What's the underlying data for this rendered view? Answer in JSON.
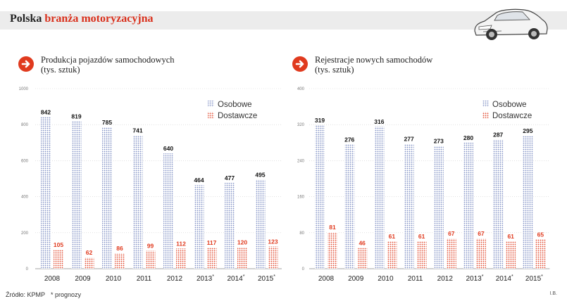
{
  "header": {
    "title_prefix": "Polska ",
    "title_accent": "branża motoryzacyjna"
  },
  "footer": {
    "source": "Źródło: KPMP",
    "note": "* prognozy",
    "credit": "I.B."
  },
  "colors": {
    "accent": "#e03a1e",
    "passenger": "#7f8fc4",
    "delivery": "#e24a2f",
    "grid": "#cfcfcf",
    "header_band": "#ececec"
  },
  "chart_data": [
    {
      "type": "bar",
      "title": "Produkcja pojazdów samochodowych",
      "subtitle": "(tys. sztuk)",
      "categories": [
        "2008",
        "2009",
        "2010",
        "2011",
        "2012",
        "2013*",
        "2014*",
        "2015*"
      ],
      "series": [
        {
          "name": "Osobowe",
          "values": [
            842,
            819,
            785,
            741,
            640,
            464,
            477,
            495
          ]
        },
        {
          "name": "Dostawcze",
          "values": [
            105,
            62,
            86,
            99,
            112,
            117,
            120,
            123
          ]
        }
      ],
      "yticks": [
        0,
        200,
        400,
        600,
        800,
        1000
      ],
      "ylim": [
        0,
        1000
      ],
      "legend": "top-right"
    },
    {
      "type": "bar",
      "title": "Rejestracje nowych samochodów",
      "subtitle": "(tys. sztuk)",
      "categories": [
        "2008",
        "2009",
        "2010",
        "2011",
        "2012",
        "2013*",
        "2014*",
        "2015*"
      ],
      "series": [
        {
          "name": "Osobowe",
          "values": [
            319,
            276,
            316,
            277,
            273,
            280,
            287,
            295
          ]
        },
        {
          "name": "Dostawcze",
          "values": [
            81,
            46,
            61,
            61,
            67,
            67,
            61,
            65
          ]
        }
      ],
      "yticks": [
        0,
        80,
        160,
        240,
        320,
        400
      ],
      "ylim": [
        0,
        400
      ],
      "legend": "top-right"
    }
  ]
}
